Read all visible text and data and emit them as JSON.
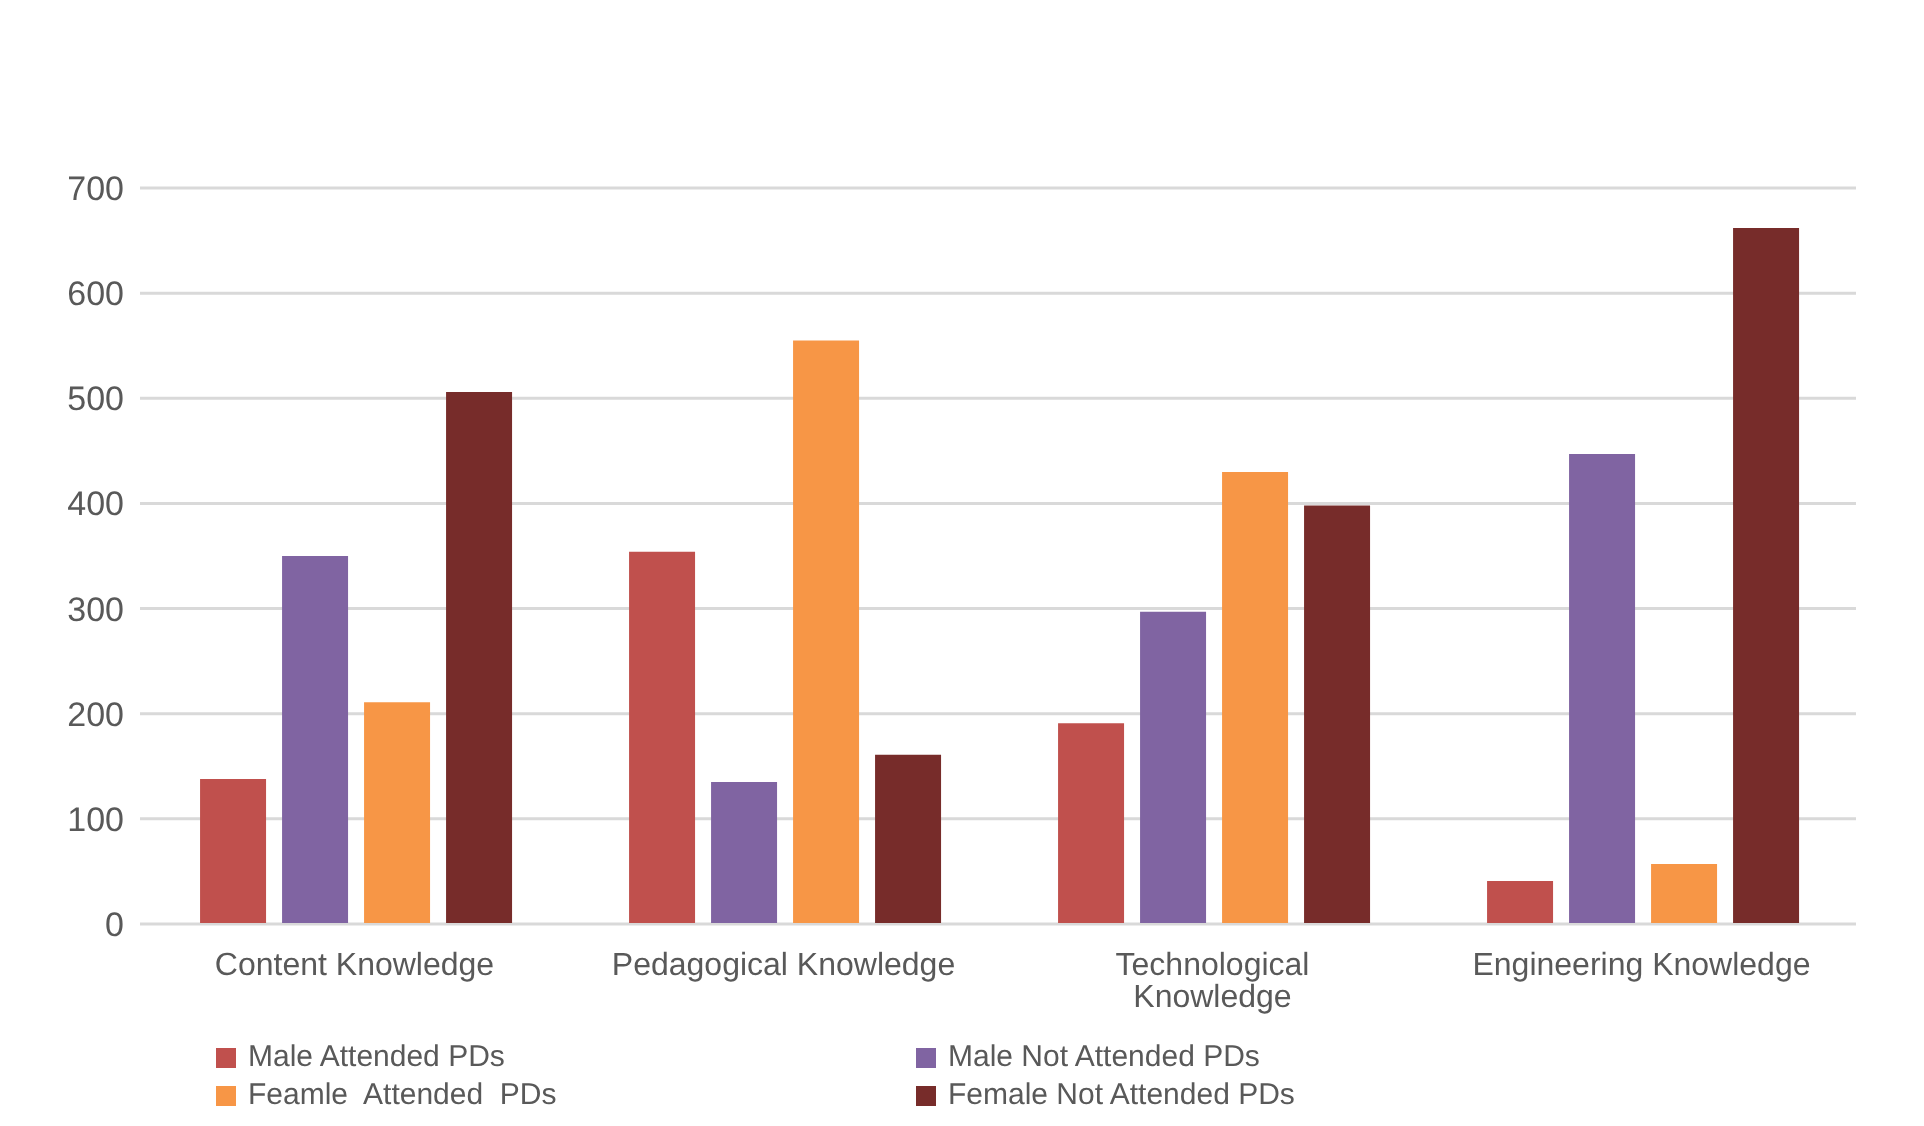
{
  "chart_data": {
    "type": "bar",
    "categories": [
      "Content Knowledge",
      "Pedagogical Knowledge",
      "Technological Knowledge",
      "Engineering Knowledge"
    ],
    "series": [
      {
        "name": "Male Attended PDs",
        "color": "#c0504d",
        "values": [
          138,
          354,
          191,
          41
        ]
      },
      {
        "name": "Male Not Attended PDs",
        "color": "#8064a2",
        "values": [
          350,
          135,
          297,
          447
        ]
      },
      {
        "name": "Feamle  Attended  PDs",
        "color": "#f79646",
        "values": [
          211,
          555,
          430,
          57
        ]
      },
      {
        "name": "Female Not Attended PDs",
        "color": "#772c2a",
        "values": [
          506,
          161,
          398,
          662
        ]
      }
    ],
    "ylim": [
      0,
      700
    ],
    "yticks": [
      0,
      100,
      200,
      300,
      400,
      500,
      600,
      700
    ],
    "grid": "y",
    "legend": "bottom"
  }
}
